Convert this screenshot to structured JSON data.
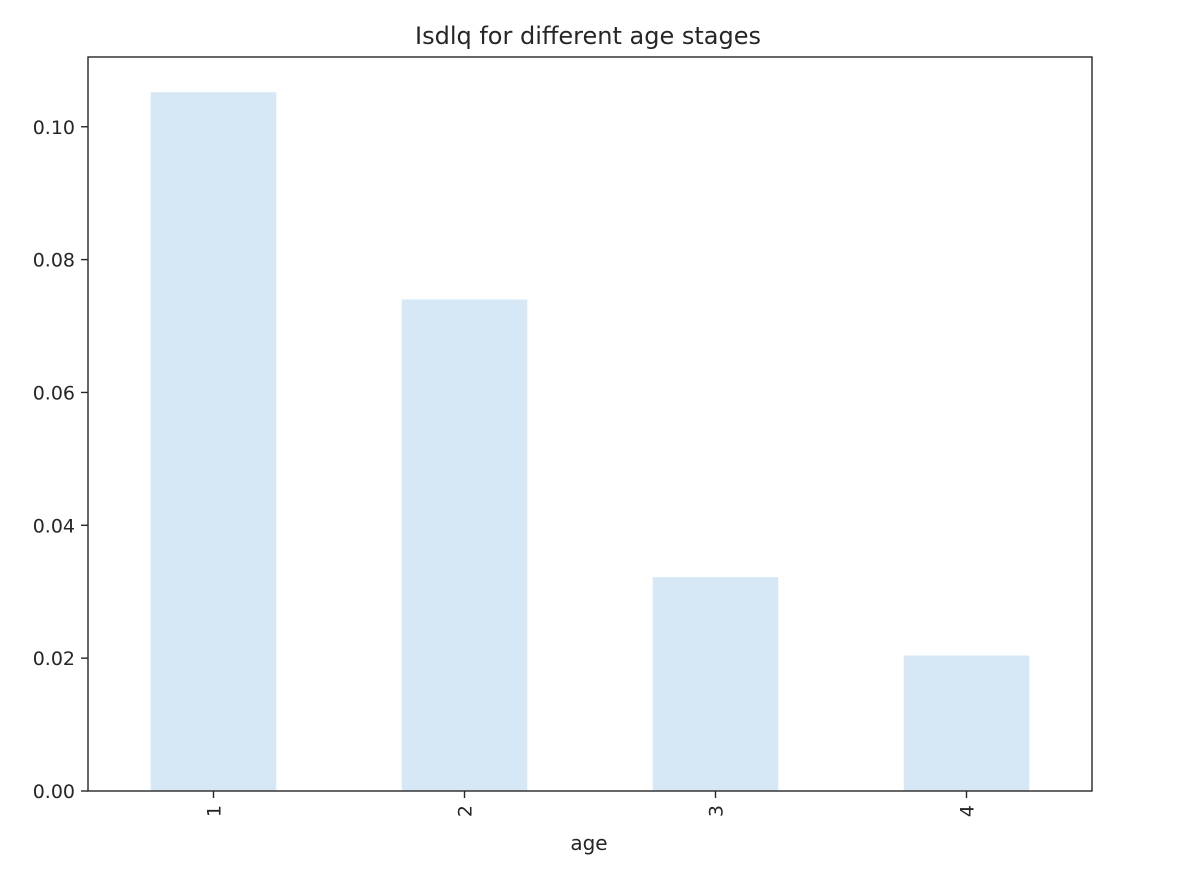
{
  "chart_data": {
    "type": "bar",
    "title": "Isdlq for different age stages",
    "xlabel": "age",
    "ylabel": "",
    "categories": [
      "1",
      "2",
      "3",
      "4"
    ],
    "values": [
      0.1052,
      0.074,
      0.0322,
      0.0204
    ],
    "ylim": [
      0,
      0.1105
    ],
    "yticks": [
      0.0,
      0.02,
      0.04,
      0.06,
      0.08,
      0.1
    ],
    "ytick_labels": [
      "0.00",
      "0.02",
      "0.04",
      "0.06",
      "0.08",
      "0.10"
    ],
    "xtick_rotation": "vertical",
    "grid": false,
    "legend": "none",
    "bar_color": "#d6e8f6",
    "axis_color": "#262626"
  }
}
